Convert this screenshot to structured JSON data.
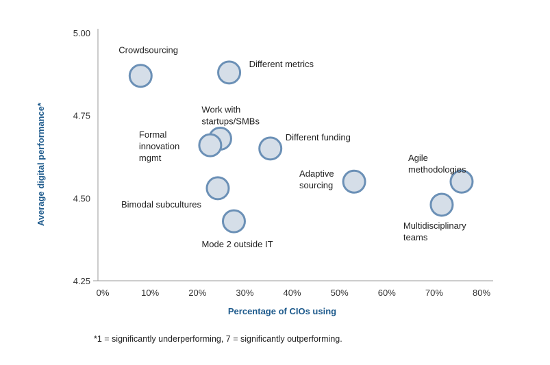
{
  "chart_data": {
    "type": "scatter",
    "xlabel": "Percentage of CIOs using",
    "ylabel": "Average digital performance*",
    "xlim": [
      0,
      80
    ],
    "ylim": [
      4.25,
      5.0
    ],
    "x_ticks": [
      "0%",
      "10%",
      "20%",
      "30%",
      "40%",
      "50%",
      "60%",
      "70%",
      "80%"
    ],
    "y_ticks": [
      "4.25",
      "4.50",
      "4.75",
      "5.00"
    ],
    "grid": false,
    "points": [
      {
        "label": [
          "Crowdsourcing"
        ],
        "x": 8,
        "y": 4.87
      },
      {
        "label": [
          "Different metrics"
        ],
        "x": 26.7,
        "y": 4.88
      },
      {
        "label": [
          "Work with",
          "startups/SMBs"
        ],
        "x": 24.8,
        "y": 4.68
      },
      {
        "label": [
          "Formal",
          "innovation",
          "mgmt"
        ],
        "x": 22.7,
        "y": 4.66
      },
      {
        "label": [
          "Different funding"
        ],
        "x": 35.4,
        "y": 4.65
      },
      {
        "label": [
          "Adaptive",
          "sourcing"
        ],
        "x": 53.1,
        "y": 4.55
      },
      {
        "label": [
          "Agile",
          "methodologies"
        ],
        "x": 75.8,
        "y": 4.55
      },
      {
        "label": [
          "Multidisciplinary",
          "teams"
        ],
        "x": 71.6,
        "y": 4.48
      },
      {
        "label": [
          "Bimodal subcultures"
        ],
        "x": 24.3,
        "y": 4.53
      },
      {
        "label": [
          "Mode 2 outside IT"
        ],
        "x": 27.7,
        "y": 4.43
      }
    ],
    "colors": {
      "bubble_fill": "#d5dee8",
      "bubble_stroke": "#6b90b6",
      "axis_title": "#1d5a8c"
    }
  },
  "footnote": "*1 = significantly underperforming, 7 = significantly outperforming."
}
